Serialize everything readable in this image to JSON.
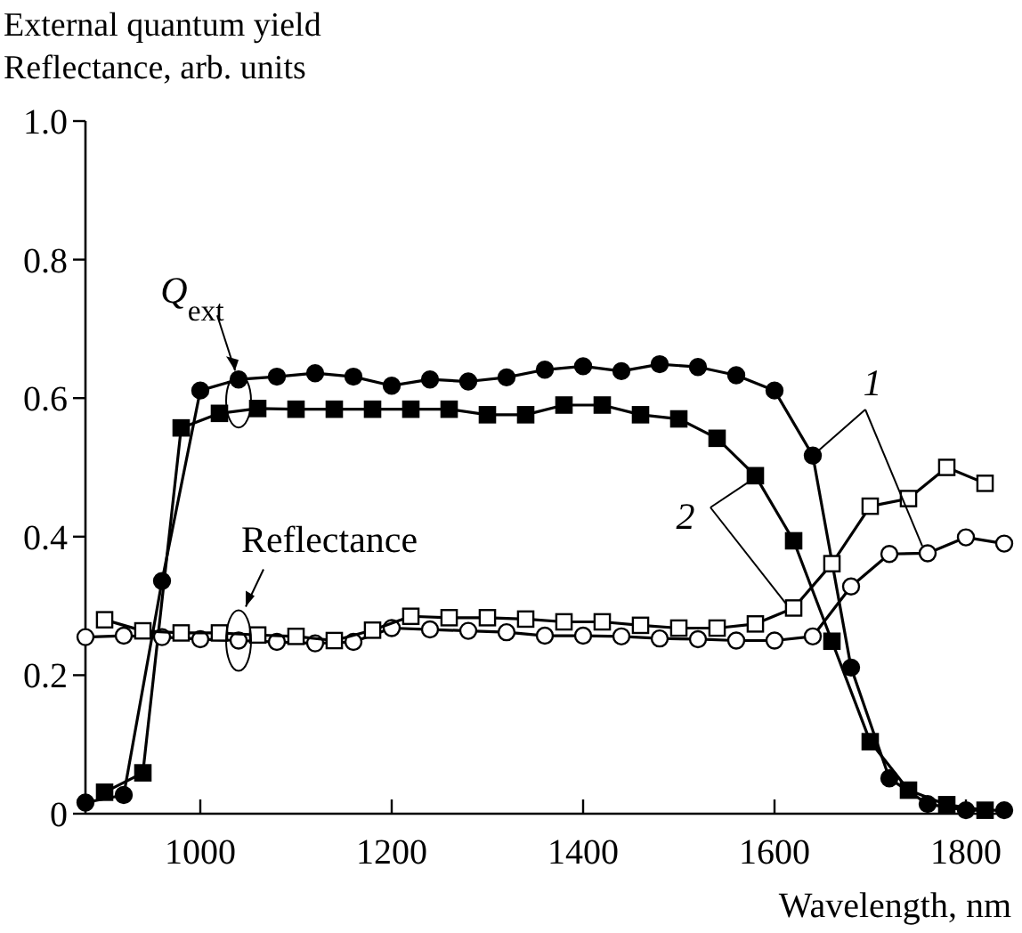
{
  "chart_data": {
    "type": "line",
    "ylabel": "External quantum yield\nReflectance, arb. units",
    "xlabel": "Wavelength, nm",
    "xlim": [
      880,
      1840
    ],
    "xticks": [
      1000,
      1200,
      1400,
      1600,
      1800
    ],
    "ylim": [
      0,
      1
    ],
    "yticks": [
      0,
      0.2,
      0.4,
      0.6,
      0.8,
      {
        "value": 1,
        "label": "1.0"
      }
    ],
    "grid": false,
    "line_style": "solid",
    "series": [
      {
        "color": "#000000",
        "marker": "circle",
        "x": [
          880,
          920,
          960,
          1000,
          1040,
          1080,
          1120,
          1160,
          1200,
          1240,
          1280,
          1320,
          1360,
          1400,
          1440,
          1480,
          1520,
          1560,
          1600,
          1640,
          1680,
          1720,
          1760,
          1800,
          1840
        ],
        "values": [
          0.016,
          0.027,
          0.336,
          0.611,
          0.627,
          0.631,
          0.636,
          0.631,
          0.618,
          0.627,
          0.624,
          0.63,
          0.641,
          0.646,
          0.639,
          0.649,
          0.645,
          0.633,
          0.611,
          0.517,
          0.211,
          0.051,
          0.014,
          0.005,
          0.005
        ]
      },
      {
        "color": "#000000",
        "marker": "square",
        "x": [
          900,
          940,
          980,
          1020,
          1060,
          1100,
          1140,
          1180,
          1220,
          1260,
          1300,
          1340,
          1380,
          1420,
          1460,
          1500,
          1540,
          1580,
          1620,
          1660,
          1700,
          1740,
          1780,
          1820
        ],
        "values": [
          0.031,
          0.059,
          0.557,
          0.578,
          0.585,
          0.584,
          0.584,
          0.584,
          0.584,
          0.584,
          0.576,
          0.576,
          0.59,
          0.59,
          0.576,
          0.57,
          0.542,
          0.488,
          0.394,
          0.249,
          0.104,
          0.034,
          0.013,
          0.005
        ]
      },
      {
        "color": "#000000",
        "marker": "circle",
        "x": [
          880,
          920,
          960,
          1000,
          1040,
          1080,
          1120,
          1160,
          1200,
          1240,
          1280,
          1320,
          1360,
          1400,
          1440,
          1480,
          1520,
          1560,
          1600,
          1640,
          1680,
          1720,
          1760,
          1800,
          1840
        ],
        "values": [
          0.255,
          0.257,
          0.255,
          0.252,
          0.25,
          0.248,
          0.246,
          0.248,
          0.268,
          0.266,
          0.264,
          0.262,
          0.257,
          0.257,
          0.256,
          0.253,
          0.252,
          0.25,
          0.25,
          0.256,
          0.328,
          0.375,
          0.376,
          0.399,
          0.39
        ]
      },
      {
        "color": "#000000",
        "marker": "square",
        "x": [
          900,
          940,
          980,
          1020,
          1060,
          1100,
          1140,
          1180,
          1220,
          1260,
          1300,
          1340,
          1380,
          1420,
          1460,
          1500,
          1540,
          1580,
          1620,
          1660,
          1700,
          1740,
          1780,
          1820
        ],
        "values": [
          0.28,
          0.264,
          0.261,
          0.261,
          0.258,
          0.256,
          0.25,
          0.265,
          0.285,
          0.283,
          0.283,
          0.281,
          0.277,
          0.277,
          0.272,
          0.268,
          0.268,
          0.274,
          0.297,
          0.361,
          0.444,
          0.455,
          0.5,
          0.477
        ]
      }
    ],
    "annotations": [
      {
        "text": "Q$_{ext}$",
        "x": 1040,
        "y": 0.627
      },
      "Reflectance",
      {
        "text": "1",
        "x": 1760,
        "y": 0.376
      },
      {
        "text": "2",
        "x": 1620,
        "y": 0.297
      }
    ]
  }
}
